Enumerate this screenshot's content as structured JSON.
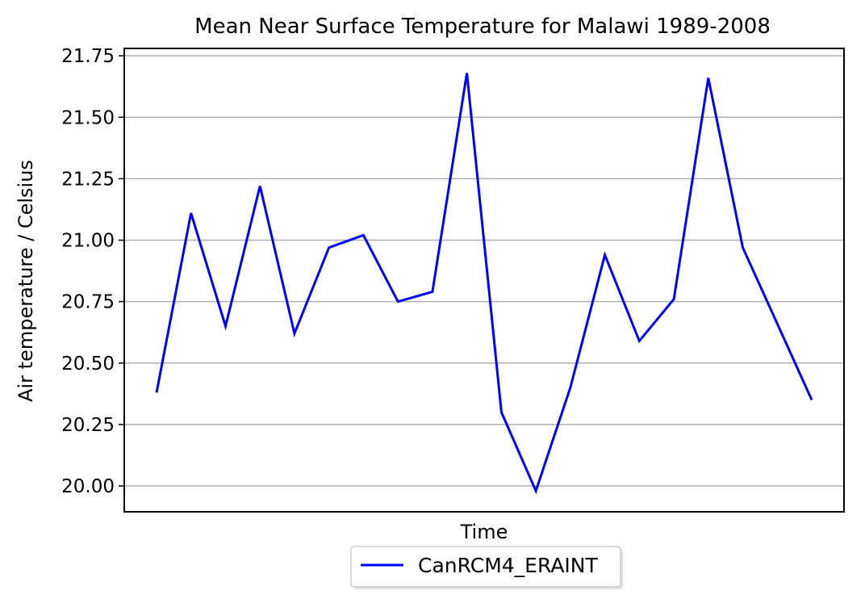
{
  "chart_data": {
    "type": "line",
    "title": "Mean Near Surface Temperature for Malawi 1989-2008",
    "xlabel": "Time",
    "ylabel": "Air temperature / Celsius",
    "ylim": [
      19.895,
      21.78
    ],
    "yticks": [
      20.0,
      20.25,
      20.5,
      20.75,
      21.0,
      21.25,
      21.5,
      21.75
    ],
    "ytick_labels": [
      "20.00",
      "20.25",
      "20.50",
      "20.75",
      "21.00",
      "21.25",
      "21.50",
      "21.75"
    ],
    "grid": true,
    "legend_position": "bottom-center",
    "x": [
      1989,
      1990,
      1991,
      1992,
      1993,
      1994,
      1995,
      1996,
      1997,
      1998,
      1999,
      2000,
      2001,
      2002,
      2003,
      2004,
      2005,
      2006,
      2007,
      2008
    ],
    "series": [
      {
        "name": "CanRCM4_ERAINT",
        "color": "#0000ff",
        "values": [
          20.38,
          21.11,
          20.65,
          21.22,
          20.62,
          20.97,
          21.02,
          20.75,
          20.79,
          21.68,
          20.3,
          19.98,
          20.4,
          20.94,
          20.59,
          20.76,
          21.66,
          20.97,
          20.66,
          20.35
        ]
      }
    ]
  }
}
